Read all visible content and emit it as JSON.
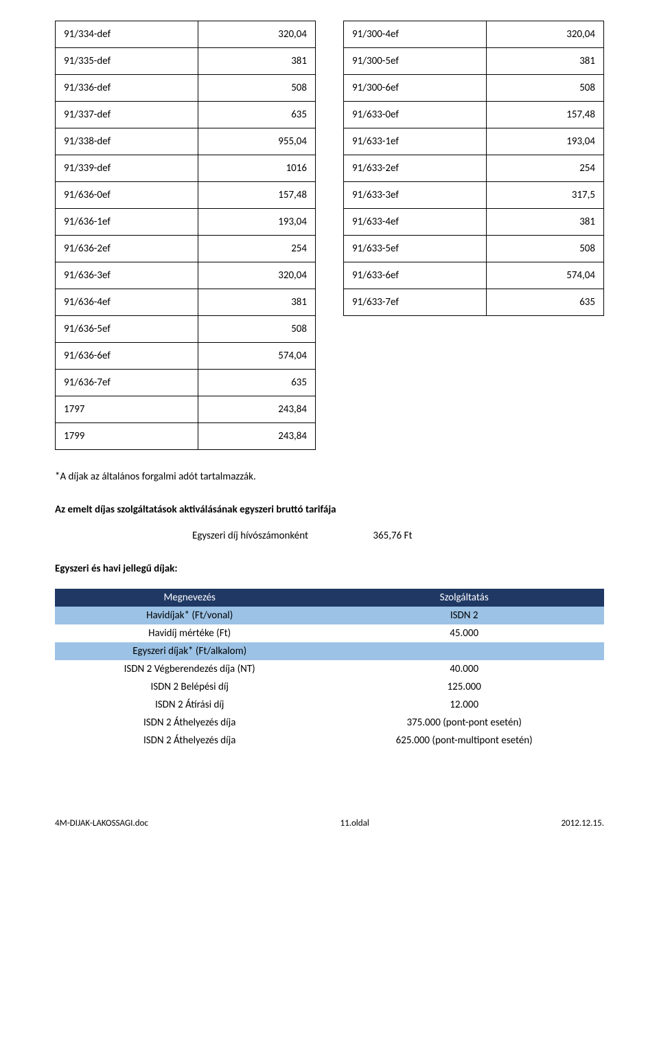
{
  "tables": {
    "left": [
      {
        "code": "91/334-def",
        "val": "320,04"
      },
      {
        "code": "91/335-def",
        "val": "381"
      },
      {
        "code": "91/336-def",
        "val": "508"
      },
      {
        "code": "91/337-def",
        "val": "635"
      },
      {
        "code": "91/338-def",
        "val": "955,04"
      },
      {
        "code": "91/339-def",
        "val": "1016"
      },
      {
        "code": "91/636-0ef",
        "val": "157,48"
      },
      {
        "code": "91/636-1ef",
        "val": "193,04"
      },
      {
        "code": "91/636-2ef",
        "val": "254"
      },
      {
        "code": "91/636-3ef",
        "val": "320,04"
      },
      {
        "code": "91/636-4ef",
        "val": "381"
      },
      {
        "code": "91/636-5ef",
        "val": "508"
      },
      {
        "code": "91/636-6ef",
        "val": "574,04"
      },
      {
        "code": "91/636-7ef",
        "val": "635"
      },
      {
        "code": "1797",
        "val": "243,84"
      },
      {
        "code": "1799",
        "val": "243,84"
      }
    ],
    "right": [
      {
        "code": "91/300-4ef",
        "val": "320,04"
      },
      {
        "code": "91/300-5ef",
        "val": "381"
      },
      {
        "code": "91/300-6ef",
        "val": "508"
      },
      {
        "code": "91/633-0ef",
        "val": "157,48"
      },
      {
        "code": "91/633-1ef",
        "val": "193,04"
      },
      {
        "code": "91/633-2ef",
        "val": "254"
      },
      {
        "code": "91/633-3ef",
        "val": "317,5"
      },
      {
        "code": "91/633-4ef",
        "val": "381"
      },
      {
        "code": "91/633-5ef",
        "val": "508"
      },
      {
        "code": "91/633-6ef",
        "val": "574,04"
      },
      {
        "code": "91/633-7ef",
        "val": "635"
      }
    ]
  },
  "footnote": "*A díjak az általános forgalmi adót tartalmazzák.",
  "heading1": "Az emelt díjas szolgáltatások aktiválásának egyszeri bruttó tarifája",
  "fee": {
    "label": "Egyszeri díj hívószámonként",
    "value": "365,76 Ft"
  },
  "heading2": "Egyszeri és havi jellegű díjak:",
  "pricing": {
    "header": [
      "Megnevezés",
      "Szolgáltatás"
    ],
    "rows": [
      {
        "cls": "sub",
        "c1": "Havidíjak* (Ft/vonal)",
        "c2": "ISDN 2"
      },
      {
        "cls": "plain",
        "c1": "Havidíj mértéke (Ft)",
        "c2": "45.000"
      },
      {
        "cls": "sub",
        "c1": "Egyszeri díjak* (Ft/alkalom)",
        "c2": ""
      },
      {
        "cls": "plain",
        "c1": "ISDN 2 Végberendezés díja (NT)",
        "c2": "40.000"
      },
      {
        "cls": "plain",
        "c1": "ISDN 2 Belépési díj",
        "c2": "125.000"
      },
      {
        "cls": "plain",
        "c1": "ISDN 2 Átírási díj",
        "c2": "12.000"
      },
      {
        "cls": "plain",
        "c1": "ISDN 2 Áthelyezés díja",
        "c2": "375.000 (pont-pont esetén)"
      },
      {
        "cls": "plain",
        "c1": "ISDN 2 Áthelyezés díja",
        "c2": "625.000 (pont-multipont esetén)"
      }
    ]
  },
  "footer": {
    "left": "4M-DIJAK-LAKOSSAGI.doc",
    "center": "11.oldal",
    "right": "2012.12.15."
  },
  "style": {
    "header_bg": "#1f3864",
    "header_fg": "#ffffff",
    "sub_bg": "#9cc2e5",
    "border": "#000000",
    "body_fontsize": 15
  }
}
